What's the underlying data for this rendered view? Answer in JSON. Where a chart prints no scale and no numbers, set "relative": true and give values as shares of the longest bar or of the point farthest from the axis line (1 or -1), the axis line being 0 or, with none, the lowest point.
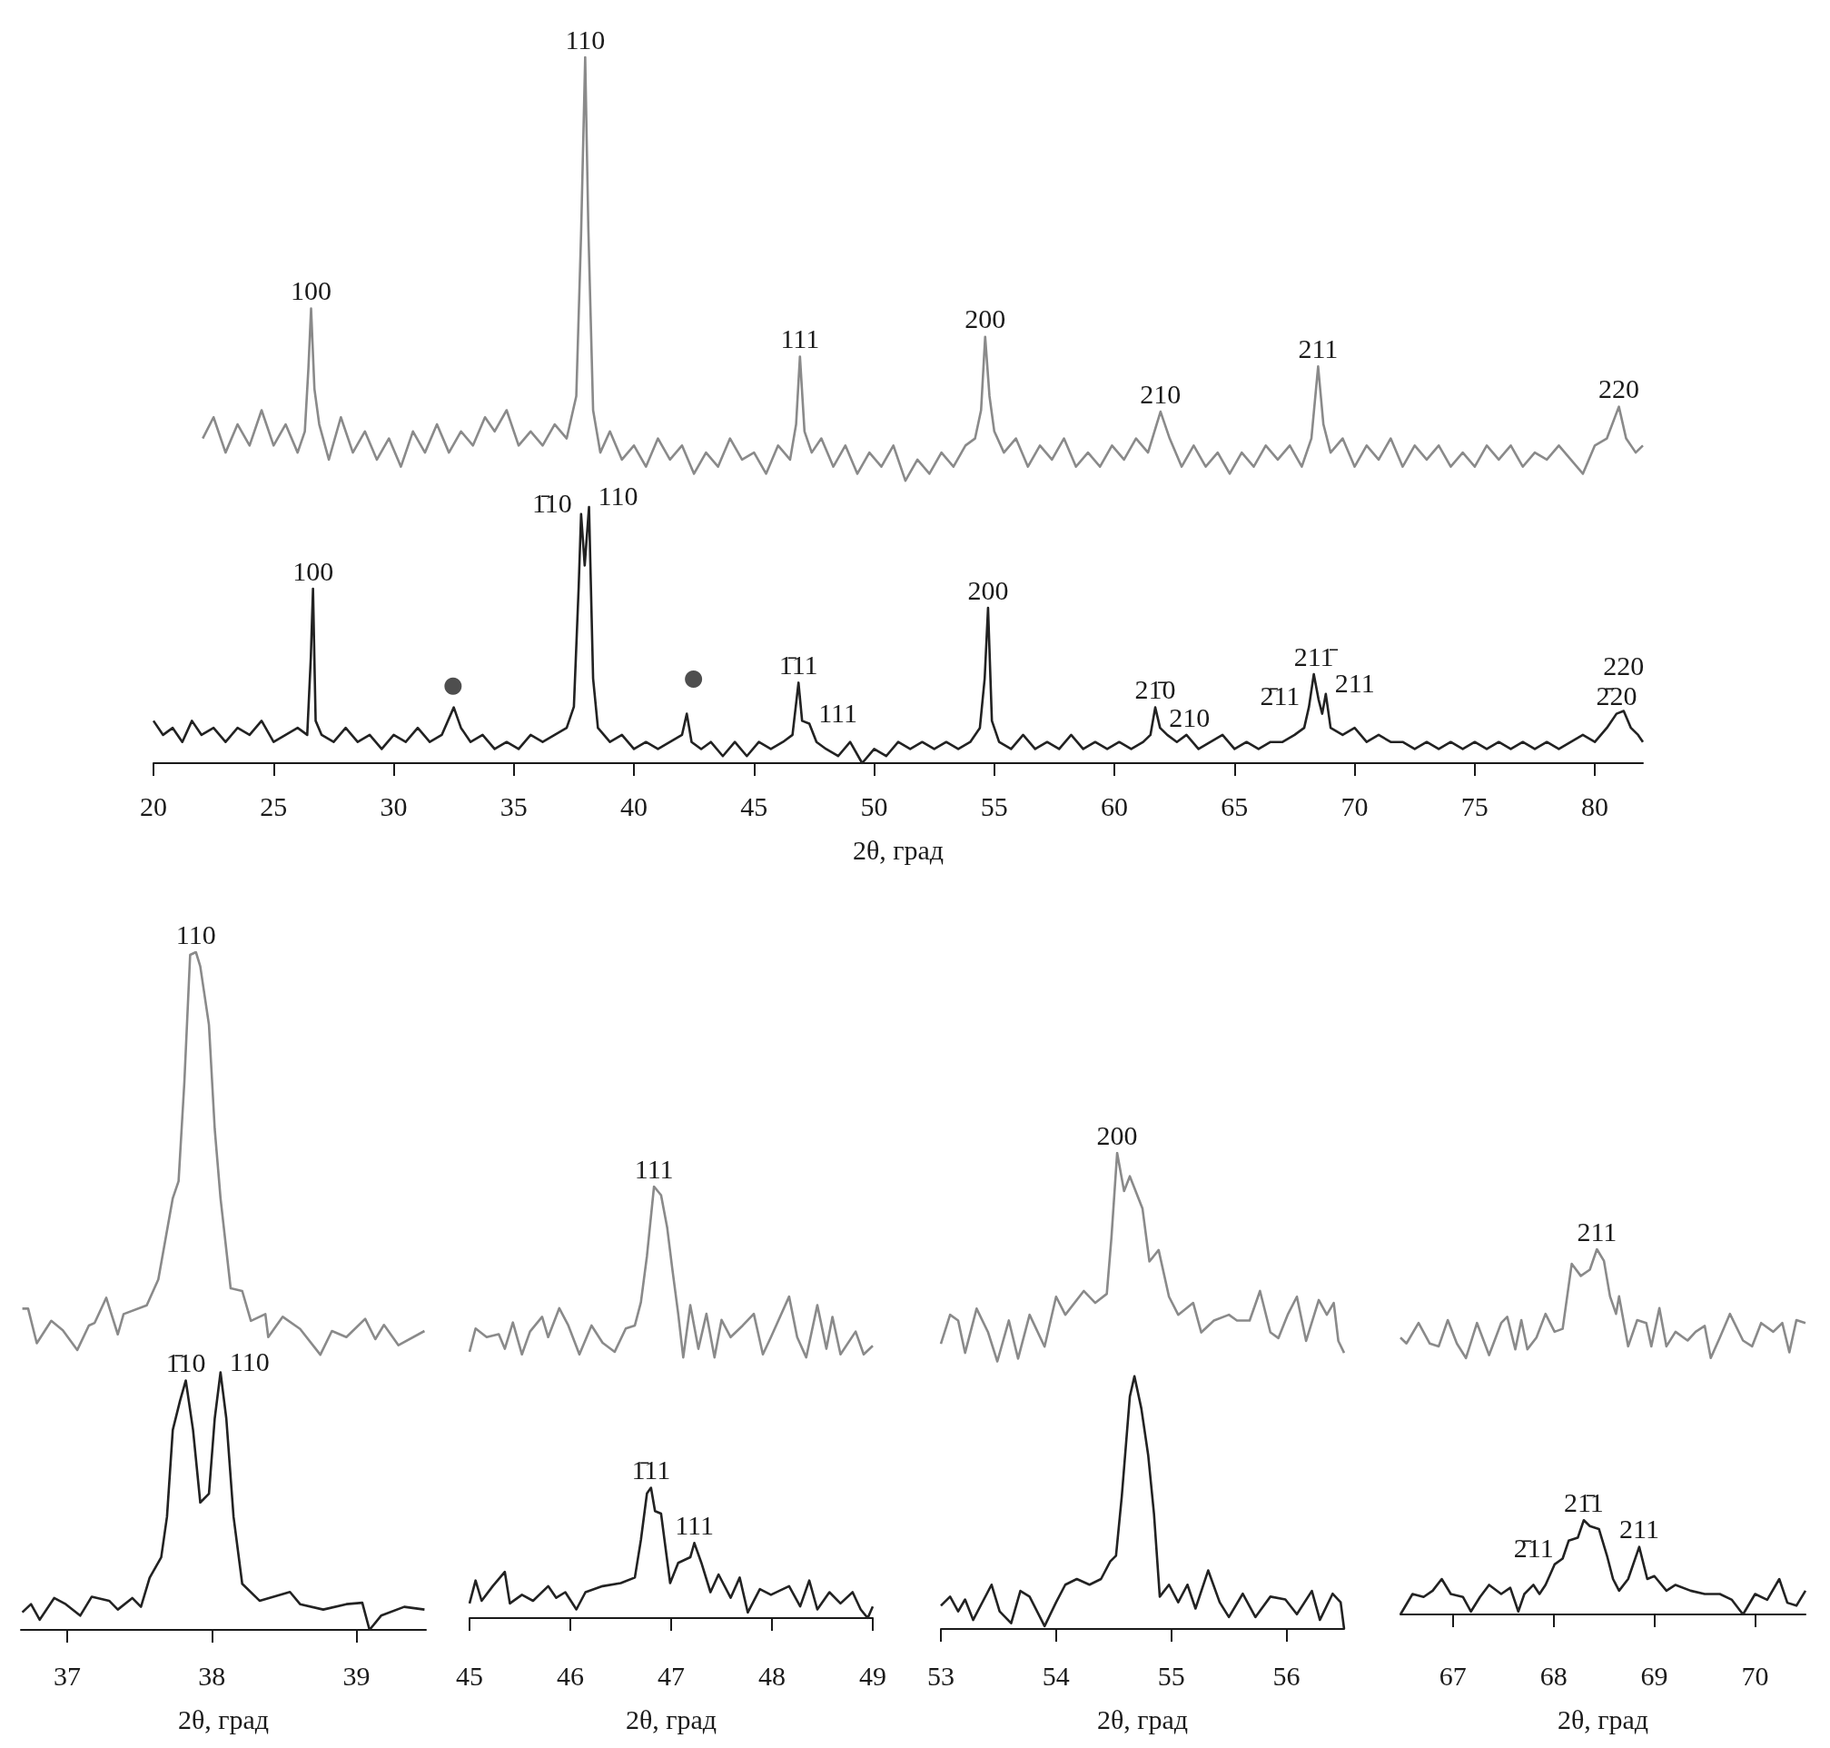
{
  "chart_data": [
    {
      "type": "line",
      "relative": true,
      "xlabel": "2θ, град",
      "xlim": [
        20,
        82
      ],
      "xticks": [
        20,
        25,
        30,
        35,
        40,
        45,
        50,
        55,
        60,
        65,
        70,
        75,
        80
      ],
      "series": [
        {
          "color": "#8a8a8a",
          "x": [
            22.05,
            22.5,
            23,
            23.5,
            24,
            24.5,
            25,
            25.5,
            26,
            26.3,
            26.45,
            26.56,
            26.7,
            26.9,
            27.3,
            27.8,
            28.3,
            28.8,
            29.3,
            29.8,
            30.3,
            30.8,
            31.3,
            31.8,
            32.3,
            32.8,
            33.3,
            33.8,
            34.2,
            34.7,
            35.2,
            35.7,
            36.2,
            36.7,
            37.2,
            37.6,
            37.8,
            37.97,
            38.1,
            38.3,
            38.6,
            39,
            39.5,
            40,
            40.5,
            41,
            41.5,
            42,
            42.5,
            43,
            43.5,
            44,
            44.5,
            45,
            45.5,
            46,
            46.5,
            46.75,
            46.91,
            47.1,
            47.4,
            47.8,
            48.3,
            48.8,
            49.3,
            49.8,
            50.3,
            50.8,
            51.3,
            51.8,
            52.3,
            52.8,
            53.3,
            53.8,
            54.2,
            54.45,
            54.62,
            54.8,
            55,
            55.4,
            55.9,
            56.4,
            56.9,
            57.4,
            57.9,
            58.4,
            58.9,
            59.4,
            59.9,
            60.4,
            60.9,
            61.4,
            61.92,
            62.3,
            62.8,
            63.3,
            63.8,
            64.3,
            64.8,
            65.3,
            65.8,
            66.3,
            66.8,
            67.3,
            67.8,
            68.2,
            68.48,
            68.7,
            69,
            69.5,
            70,
            70.5,
            71,
            71.5,
            72,
            72.5,
            73,
            73.5,
            74,
            74.5,
            75,
            75.5,
            76,
            76.5,
            77,
            77.5,
            78,
            78.5,
            79,
            79.5,
            80,
            80.5,
            81,
            81.3,
            81.7,
            82
          ],
          "values": [
            0.46,
            0.49,
            0.44,
            0.48,
            0.45,
            0.5,
            0.45,
            0.48,
            0.44,
            0.47,
            0.56,
            0.644,
            0.53,
            0.48,
            0.43,
            0.49,
            0.44,
            0.47,
            0.43,
            0.46,
            0.42,
            0.47,
            0.44,
            0.48,
            0.44,
            0.47,
            0.45,
            0.49,
            0.47,
            0.5,
            0.45,
            0.47,
            0.45,
            0.48,
            0.46,
            0.52,
            0.75,
            1,
            0.76,
            0.5,
            0.44,
            0.47,
            0.43,
            0.45,
            0.42,
            0.46,
            0.43,
            0.45,
            0.41,
            0.44,
            0.42,
            0.46,
            0.43,
            0.44,
            0.41,
            0.45,
            0.43,
            0.48,
            0.576,
            0.47,
            0.44,
            0.46,
            0.42,
            0.45,
            0.41,
            0.44,
            0.42,
            0.45,
            0.4,
            0.43,
            0.41,
            0.44,
            0.42,
            0.45,
            0.46,
            0.5,
            0.604,
            0.52,
            0.47,
            0.44,
            0.46,
            0.42,
            0.45,
            0.43,
            0.46,
            0.42,
            0.44,
            0.42,
            0.45,
            0.43,
            0.46,
            0.44,
            0.498,
            0.46,
            0.42,
            0.45,
            0.42,
            0.44,
            0.41,
            0.44,
            0.42,
            0.45,
            0.43,
            0.45,
            0.42,
            0.46,
            0.562,
            0.48,
            0.44,
            0.46,
            0.42,
            0.45,
            0.43,
            0.46,
            0.42,
            0.45,
            0.43,
            0.45,
            0.42,
            0.44,
            0.42,
            0.45,
            0.43,
            0.45,
            0.42,
            0.44,
            0.43,
            0.45,
            0.43,
            0.41,
            0.45,
            0.46,
            0.505,
            0.46,
            0.44,
            0.45
          ]
        },
        {
          "color": "#222222",
          "x": [
            20,
            20.4,
            20.8,
            21.2,
            21.6,
            22,
            22.5,
            23,
            23.5,
            24,
            24.5,
            25,
            25.5,
            26,
            26.4,
            26.55,
            26.64,
            26.75,
            27,
            27.5,
            28,
            28.5,
            29,
            29.5,
            30,
            30.5,
            31,
            31.5,
            32,
            32.5,
            32.8,
            33.2,
            33.7,
            34.2,
            34.7,
            35.2,
            35.7,
            36.2,
            36.7,
            37.2,
            37.5,
            37.7,
            37.8,
            37.95,
            38.13,
            38.3,
            38.5,
            39,
            39.5,
            40,
            40.5,
            41,
            41.5,
            42,
            42.2,
            42.4,
            42.8,
            43.2,
            43.7,
            44.2,
            44.7,
            45.2,
            45.7,
            46.2,
            46.6,
            46.85,
            47,
            47.3,
            47.6,
            48,
            48.5,
            49,
            49.5,
            50,
            50.5,
            51,
            51.5,
            52,
            52.5,
            53,
            53.5,
            54,
            54.4,
            54.6,
            54.74,
            54.9,
            55.2,
            55.7,
            56.2,
            56.7,
            57.2,
            57.7,
            58.2,
            58.7,
            59.2,
            59.7,
            60.2,
            60.7,
            61.2,
            61.5,
            61.7,
            61.9,
            62.2,
            62.6,
            63,
            63.5,
            64,
            64.5,
            65,
            65.5,
            66,
            66.5,
            67,
            67.5,
            67.9,
            68.1,
            68.3,
            68.5,
            68.65,
            68.8,
            69,
            69.5,
            70,
            70.5,
            71,
            71.5,
            72,
            72.5,
            73,
            73.5,
            74,
            74.5,
            75,
            75.5,
            76,
            76.5,
            77,
            77.5,
            78,
            78.5,
            79,
            79.5,
            80,
            80.5,
            80.9,
            81.2,
            81.5,
            81.8,
            82
          ],
          "values": [
            0.06,
            0.04,
            0.05,
            0.03,
            0.06,
            0.04,
            0.05,
            0.03,
            0.05,
            0.04,
            0.06,
            0.03,
            0.04,
            0.05,
            0.04,
            0.15,
            0.247,
            0.06,
            0.04,
            0.03,
            0.05,
            0.03,
            0.04,
            0.02,
            0.04,
            0.03,
            0.05,
            0.03,
            0.04,
            0.079,
            0.05,
            0.03,
            0.04,
            0.02,
            0.03,
            0.02,
            0.04,
            0.03,
            0.04,
            0.05,
            0.08,
            0.25,
            0.353,
            0.28,
            0.363,
            0.12,
            0.05,
            0.03,
            0.04,
            0.02,
            0.03,
            0.02,
            0.03,
            0.04,
            0.07,
            0.03,
            0.02,
            0.03,
            0.01,
            0.03,
            0.01,
            0.03,
            0.02,
            0.03,
            0.04,
            0.114,
            0.06,
            0.056,
            0.03,
            0.02,
            0.01,
            0.03,
            0,
            0.02,
            0.01,
            0.03,
            0.02,
            0.03,
            0.02,
            0.03,
            0.02,
            0.03,
            0.05,
            0.12,
            0.22,
            0.06,
            0.03,
            0.02,
            0.04,
            0.02,
            0.03,
            0.02,
            0.04,
            0.02,
            0.03,
            0.02,
            0.03,
            0.02,
            0.03,
            0.04,
            0.079,
            0.05,
            0.04,
            0.03,
            0.04,
            0.02,
            0.03,
            0.04,
            0.02,
            0.03,
            0.02,
            0.03,
            0.03,
            0.04,
            0.05,
            0.08,
            0.126,
            0.09,
            0.07,
            0.098,
            0.05,
            0.04,
            0.05,
            0.03,
            0.04,
            0.03,
            0.03,
            0.02,
            0.03,
            0.02,
            0.03,
            0.02,
            0.03,
            0.02,
            0.03,
            0.02,
            0.03,
            0.02,
            0.03,
            0.02,
            0.03,
            0.04,
            0.03,
            0.05,
            0.07,
            0.074,
            0.05,
            0.04,
            0.03
          ]
        },
        {
          "type": "scatter",
          "marker": "circle",
          "color": "#222222",
          "x": [
            32.47,
            42.48
          ],
          "values": [
            0.109,
            0.119
          ]
        }
      ],
      "annotations": [
        {
          "text": "100",
          "x": 26.56,
          "y": 0.644
        },
        {
          "text": "110",
          "x": 37.97,
          "y": 1
        },
        {
          "text": "111",
          "x": 46.91,
          "y": 0.576
        },
        {
          "text": "200",
          "x": 54.62,
          "y": 0.604
        },
        {
          "text": "210",
          "x": 61.92,
          "y": 0.498
        },
        {
          "text": "211",
          "x": 68.48,
          "y": 0.562
        },
        {
          "text": "220",
          "x": 81,
          "y": 0.505
        },
        {
          "text": "100",
          "x": 26.64,
          "y": 0.247
        },
        {
          "text": "1̄10",
          "x": 37.8,
          "y": 0.353
        },
        {
          "text": "110",
          "x": 38.13,
          "y": 0.363
        },
        {
          "text": "1̄11",
          "x": 46.85,
          "y": 0.114
        },
        {
          "text": "111",
          "x": 47.3,
          "y": 0.056
        },
        {
          "text": "200",
          "x": 54.74,
          "y": 0.22
        },
        {
          "text": "21̄0",
          "x": 61.7,
          "y": 0.079
        },
        {
          "text": "210",
          "x": 61.9,
          "y": 0.05
        },
        {
          "text": "2̄11",
          "x": 68.1,
          "y": 0.08
        },
        {
          "text": "211̄",
          "x": 68.3,
          "y": 0.126
        },
        {
          "text": "211",
          "x": 68.8,
          "y": 0.098
        },
        {
          "text": "2̄20",
          "x": 80.9,
          "y": 0.07
        },
        {
          "text": "220",
          "x": 81.2,
          "y": 0.074
        }
      ]
    },
    {
      "type": "line",
      "relative": true,
      "xlabel": "2θ, град",
      "xlim": [
        36.68,
        39.48
      ],
      "xticks": [
        37,
        38,
        39
      ],
      "series": [
        {
          "color": "#8a8a8a",
          "x": [
            36.69,
            36.73,
            36.79,
            36.89,
            36.97,
            37.07,
            37.15,
            37.19,
            37.27,
            37.35,
            37.39,
            37.55,
            37.63,
            37.73,
            37.77,
            37.81,
            37.85,
            37.89,
            37.92,
            37.98,
            38.02,
            38.06,
            38.13,
            38.21,
            38.27,
            38.37,
            38.39,
            38.49,
            38.61,
            38.75,
            38.83,
            38.93,
            39.06,
            39.13,
            39.19,
            39.29,
            39.47
          ],
          "values": [
            0.474,
            0.474,
            0.423,
            0.456,
            0.442,
            0.413,
            0.449,
            0.453,
            0.49,
            0.436,
            0.466,
            0.479,
            0.517,
            0.637,
            0.662,
            0.808,
            0.996,
            1,
            0.979,
            0.893,
            0.739,
            0.637,
            0.504,
            0.5,
            0.456,
            0.466,
            0.432,
            0.462,
            0.444,
            0.406,
            0.441,
            0.432,
            0.459,
            0.429,
            0.45,
            0.42,
            0.441
          ]
        },
        {
          "color": "#222222",
          "x": [
            36.69,
            36.75,
            36.81,
            36.91,
            36.99,
            37.09,
            37.17,
            37.29,
            37.35,
            37.45,
            37.51,
            37.57,
            37.65,
            37.69,
            37.73,
            37.78,
            37.82,
            37.87,
            37.92,
            37.98,
            38.02,
            38.06,
            38.1,
            38.15,
            38.21,
            38.33,
            38.54,
            38.61,
            38.77,
            38.93,
            39.04,
            39.09,
            39.17,
            39.33,
            39.47
          ],
          "values": [
            0.026,
            0.038,
            0.015,
            0.047,
            0.038,
            0.021,
            0.049,
            0.043,
            0.03,
            0.047,
            0.034,
            0.077,
            0.107,
            0.167,
            0.295,
            0.338,
            0.368,
            0.295,
            0.188,
            0.201,
            0.312,
            0.38,
            0.312,
            0.167,
            0.068,
            0.043,
            0.056,
            0.038,
            0.03,
            0.038,
            0.04,
            0,
            0.021,
            0.034,
            0.03
          ]
        }
      ],
      "annotations": [
        {
          "text": "110",
          "x": 37.89,
          "y": 1
        },
        {
          "text": "1̄10",
          "x": 37.82,
          "y": 0.368
        },
        {
          "text": "110",
          "x": 38.06,
          "y": 0.38
        }
      ]
    },
    {
      "type": "line",
      "relative": true,
      "xlabel": "2θ, град",
      "xlim": [
        45,
        49
      ],
      "xticks": [
        45,
        46,
        47,
        48,
        49
      ],
      "series": [
        {
          "color": "#8a8a8a",
          "x": [
            45,
            45.06,
            45.17,
            45.29,
            45.35,
            45.43,
            45.52,
            45.6,
            45.72,
            45.78,
            45.89,
            45.98,
            46.09,
            46.21,
            46.32,
            46.44,
            46.55,
            46.64,
            46.7,
            46.76,
            46.83,
            46.9,
            46.96,
            47.01,
            47.07,
            47.12,
            47.19,
            47.27,
            47.35,
            47.43,
            47.5,
            47.59,
            47.71,
            47.82,
            47.91,
            47.99,
            48.17,
            48.25,
            48.34,
            48.45,
            48.54,
            48.6,
            48.68,
            48.83,
            48.91,
            49
          ],
          "values": [
            0.617,
            0.671,
            0.651,
            0.658,
            0.624,
            0.685,
            0.611,
            0.664,
            0.698,
            0.651,
            0.718,
            0.678,
            0.611,
            0.678,
            0.638,
            0.617,
            0.671,
            0.678,
            0.732,
            0.839,
            1,
            0.98,
            0.906,
            0.812,
            0.705,
            0.604,
            0.725,
            0.624,
            0.705,
            0.604,
            0.691,
            0.651,
            0.678,
            0.705,
            0.611,
            0.651,
            0.745,
            0.651,
            0.604,
            0.725,
            0.624,
            0.698,
            0.611,
            0.664,
            0.611,
            0.631
          ]
        },
        {
          "color": "#222222",
          "x": [
            45,
            45.06,
            45.12,
            45.23,
            45.35,
            45.4,
            45.52,
            45.63,
            45.78,
            45.86,
            45.95,
            46.06,
            46.15,
            46.32,
            46.5,
            46.64,
            46.7,
            46.76,
            46.8,
            46.84,
            46.9,
            46.99,
            47.07,
            47.19,
            47.23,
            47.3,
            47.39,
            47.47,
            47.59,
            47.68,
            47.76,
            47.88,
            47.99,
            48.17,
            48.28,
            48.37,
            48.45,
            48.57,
            48.68,
            48.8,
            48.88,
            48.95,
            49
          ],
          "values": [
            0.034,
            0.087,
            0.04,
            0.074,
            0.107,
            0.034,
            0.054,
            0.04,
            0.074,
            0.047,
            0.06,
            0.02,
            0.06,
            0.074,
            0.081,
            0.094,
            0.181,
            0.289,
            0.302,
            0.248,
            0.242,
            0.081,
            0.128,
            0.141,
            0.174,
            0.128,
            0.06,
            0.101,
            0.047,
            0.094,
            0.013,
            0.067,
            0.054,
            0.074,
            0.027,
            0.087,
            0.02,
            0.06,
            0.034,
            0.06,
            0.02,
            0,
            0.027
          ]
        }
      ],
      "annotations": [
        {
          "text": "111",
          "x": 46.83,
          "y": 1
        },
        {
          "text": "1̄11",
          "x": 46.8,
          "y": 0.302
        },
        {
          "text": "111",
          "x": 47.23,
          "y": 0.174
        }
      ]
    },
    {
      "type": "line",
      "relative": true,
      "xlabel": "2θ, град",
      "xlim": [
        53,
        56.5
      ],
      "xticks": [
        53,
        54,
        55,
        56
      ],
      "series": [
        {
          "color": "#8a8a8a",
          "x": [
            53,
            53.08,
            53.15,
            53.21,
            53.31,
            53.41,
            53.49,
            53.59,
            53.67,
            53.77,
            53.9,
            54,
            54.08,
            54.24,
            54.34,
            54.44,
            54.48,
            54.53,
            54.59,
            54.64,
            54.75,
            54.81,
            54.89,
            54.98,
            55.06,
            55.19,
            55.26,
            55.37,
            55.5,
            55.57,
            55.68,
            55.77,
            55.86,
            55.93,
            56.01,
            56.09,
            56.17,
            56.28,
            56.35,
            56.41,
            56.45,
            56.5
          ],
          "values": [
            0.599,
            0.66,
            0.648,
            0.58,
            0.673,
            0.623,
            0.562,
            0.648,
            0.568,
            0.66,
            0.593,
            0.698,
            0.66,
            0.71,
            0.685,
            0.704,
            0.821,
            1,
            0.92,
            0.951,
            0.883,
            0.772,
            0.796,
            0.698,
            0.66,
            0.685,
            0.623,
            0.648,
            0.66,
            0.648,
            0.648,
            0.71,
            0.623,
            0.611,
            0.66,
            0.698,
            0.605,
            0.691,
            0.66,
            0.685,
            0.605,
            0.58
          ]
        },
        {
          "color": "#222222",
          "x": [
            53,
            53.08,
            53.15,
            53.21,
            53.28,
            53.44,
            53.51,
            53.61,
            53.69,
            53.77,
            53.9,
            54,
            54.08,
            54.18,
            54.29,
            54.39,
            54.47,
            54.52,
            54.57,
            54.64,
            54.68,
            54.74,
            54.8,
            54.85,
            54.9,
            54.98,
            55.06,
            55.14,
            55.21,
            55.32,
            55.42,
            55.5,
            55.62,
            55.73,
            55.86,
            55.99,
            56.09,
            56.22,
            56.29,
            56.4,
            56.47,
            56.5
          ],
          "values": [
            0.049,
            0.068,
            0.037,
            0.062,
            0.019,
            0.093,
            0.037,
            0.012,
            0.08,
            0.068,
            0.006,
            0.056,
            0.093,
            0.105,
            0.093,
            0.105,
            0.142,
            0.154,
            0.278,
            0.488,
            0.531,
            0.463,
            0.364,
            0.241,
            0.068,
            0.093,
            0.056,
            0.093,
            0.043,
            0.123,
            0.056,
            0.025,
            0.074,
            0.025,
            0.068,
            0.062,
            0.031,
            0.08,
            0.019,
            0.074,
            0.056,
            0
          ]
        }
      ],
      "annotations": [
        {
          "text": "200",
          "x": 54.53,
          "y": 1
        }
      ]
    },
    {
      "type": "line",
      "relative": true,
      "xlabel": "2θ, град",
      "xlim": [
        66.48,
        70.5
      ],
      "xticks": [
        67,
        68,
        69,
        70
      ],
      "series": [
        {
          "color": "#8a8a8a",
          "x": [
            66.48,
            66.54,
            66.66,
            66.77,
            66.86,
            66.95,
            67.04,
            67.13,
            67.24,
            67.36,
            67.48,
            67.54,
            67.62,
            67.68,
            67.74,
            67.83,
            67.92,
            68.01,
            68.09,
            68.18,
            68.27,
            68.36,
            68.43,
            68.5,
            68.56,
            68.62,
            68.65,
            68.74,
            68.83,
            68.92,
            68.97,
            69.05,
            69.12,
            69.21,
            69.33,
            69.41,
            69.5,
            69.56,
            69.65,
            69.75,
            69.88,
            69.97,
            70.06,
            70.18,
            70.27,
            70.34,
            70.41,
            70.5
          ],
          "values": [
            0.758,
            0.742,
            0.798,
            0.742,
            0.734,
            0.806,
            0.742,
            0.702,
            0.798,
            0.71,
            0.798,
            0.815,
            0.726,
            0.806,
            0.726,
            0.758,
            0.823,
            0.774,
            0.782,
            0.96,
            0.927,
            0.944,
            1,
            0.968,
            0.871,
            0.823,
            0.871,
            0.734,
            0.806,
            0.798,
            0.734,
            0.839,
            0.734,
            0.774,
            0.75,
            0.774,
            0.79,
            0.702,
            0.758,
            0.823,
            0.75,
            0.734,
            0.798,
            0.774,
            0.798,
            0.718,
            0.806,
            0.798
          ]
        },
        {
          "color": "#222222",
          "x": [
            66.48,
            66.6,
            66.71,
            66.8,
            66.89,
            66.98,
            67.1,
            67.18,
            67.27,
            67.36,
            67.48,
            67.57,
            67.65,
            67.71,
            67.8,
            67.86,
            67.92,
            68.01,
            68.09,
            68.15,
            68.24,
            68.3,
            68.36,
            68.45,
            68.53,
            68.59,
            68.65,
            68.74,
            68.85,
            68.93,
            69,
            69.12,
            69.21,
            69.36,
            69.5,
            69.65,
            69.77,
            69.88,
            70,
            70.12,
            70.24,
            70.32,
            70.41,
            70.5
          ],
          "values": [
            0,
            0.056,
            0.048,
            0.065,
            0.097,
            0.056,
            0.048,
            0.008,
            0.048,
            0.081,
            0.056,
            0.073,
            0.008,
            0.056,
            0.081,
            0.056,
            0.081,
            0.137,
            0.153,
            0.202,
            0.21,
            0.258,
            0.242,
            0.234,
            0.161,
            0.097,
            0.065,
            0.097,
            0.185,
            0.097,
            0.105,
            0.065,
            0.081,
            0.065,
            0.056,
            0.056,
            0.04,
            0,
            0.056,
            0.04,
            0.097,
            0.032,
            0.024,
            0.065
          ]
        }
      ],
      "annotations": [
        {
          "text": "211",
          "x": 68.43,
          "y": 1
        },
        {
          "text": "21̄1",
          "x": 68.3,
          "y": 0.258
        },
        {
          "text": "2̄11",
          "x": 68.09,
          "y": 0.153
        },
        {
          "text": "211",
          "x": 68.85,
          "y": 0.185
        }
      ]
    }
  ]
}
